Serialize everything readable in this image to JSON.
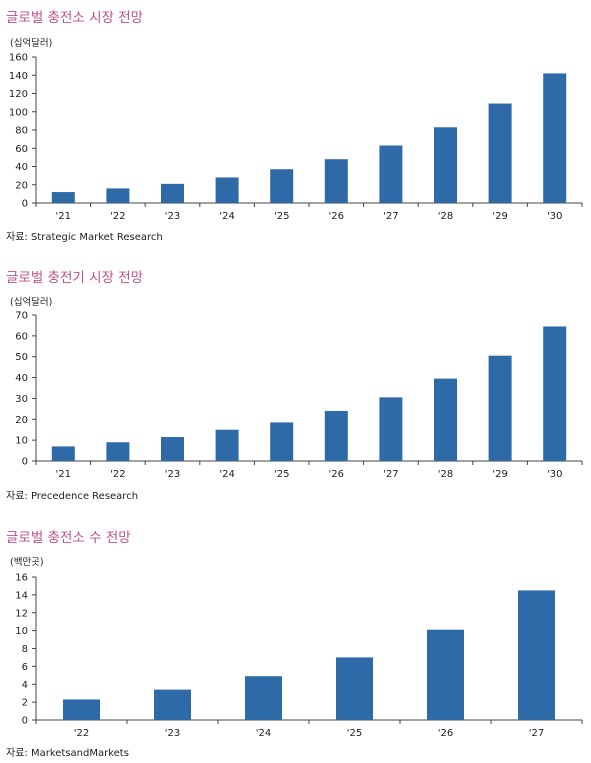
{
  "chart_data": [
    {
      "type": "bar",
      "title": "글로벌 충전소 시장 전망",
      "unit": "(십억달러)",
      "categories": [
        "'21",
        "'22",
        "'23",
        "'24",
        "'25",
        "'26",
        "'27",
        "'28",
        "'29",
        "'30"
      ],
      "values": [
        12,
        16,
        21,
        28,
        37,
        48,
        63,
        83,
        109,
        142
      ],
      "ylim": [
        0,
        160
      ],
      "yticks": [
        0,
        20,
        40,
        60,
        80,
        100,
        120,
        140,
        160
      ],
      "source": "자료: Strategic Market Research",
      "bar_color": "#2e6aa8",
      "grid": false
    },
    {
      "type": "bar",
      "title": "글로벌 충전기 시장 전망",
      "unit": "(십억달러)",
      "categories": [
        "'21",
        "'22",
        "'23",
        "'24",
        "'25",
        "'26",
        "'27",
        "'28",
        "'29",
        "'30"
      ],
      "values": [
        7,
        9,
        11.5,
        15,
        18.5,
        24,
        30.5,
        39.5,
        50.5,
        64.5
      ],
      "ylim": [
        0,
        70
      ],
      "yticks": [
        0,
        10,
        20,
        30,
        40,
        50,
        60,
        70
      ],
      "source": "자료: Precedence Research",
      "bar_color": "#2e6aa8",
      "grid": false
    },
    {
      "type": "bar",
      "title": "글로벌 충전소 수 전망",
      "unit": "(백만곳)",
      "categories": [
        "'22",
        "'23",
        "'24",
        "'25",
        "'26",
        "'27"
      ],
      "values": [
        2.3,
        3.4,
        4.9,
        7.0,
        10.1,
        14.5
      ],
      "ylim": [
        0,
        16
      ],
      "yticks": [
        0,
        2,
        4,
        6,
        8,
        10,
        12,
        14,
        16
      ],
      "source": "자료: MarketsandMarkets",
      "bar_color": "#2e6aa8",
      "grid": false
    }
  ]
}
